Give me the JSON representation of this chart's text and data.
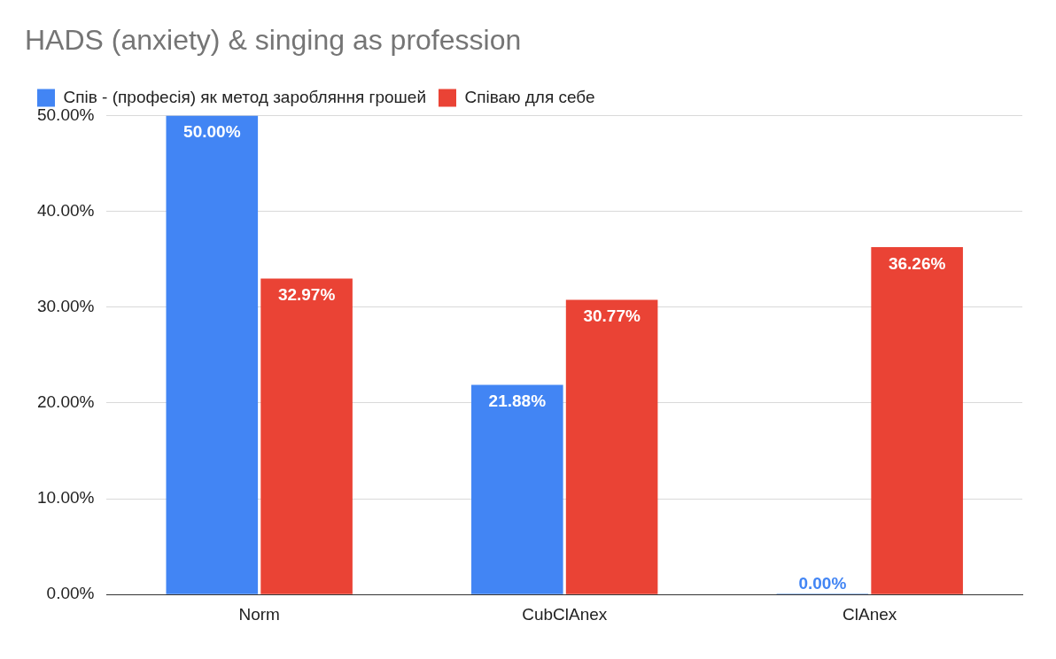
{
  "chart_data": {
    "type": "bar",
    "title": "HADS (anxiety) & singing as profession",
    "categories": [
      "Norm",
      "CubClAnex",
      "ClAnex"
    ],
    "series": [
      {
        "name": "Спів - (професія) як метод заробляння грошей",
        "color": "#4285f4",
        "values": [
          50,
          21.88,
          0
        ],
        "value_labels": [
          "50.00%",
          "21.88%",
          "0.00%"
        ]
      },
      {
        "name": "Співаю для себе",
        "color": "#ea4335",
        "values": [
          32.97,
          30.77,
          36.26
        ],
        "value_labels": [
          "32.97%",
          "30.77%",
          "36.26%"
        ]
      }
    ],
    "ylim": [
      0,
      50
    ],
    "yticks": [
      {
        "value": 0,
        "label": "0.00%"
      },
      {
        "value": 10,
        "label": "10.00%"
      },
      {
        "value": 20,
        "label": "20.00%"
      },
      {
        "value": 30,
        "label": "30.00%"
      },
      {
        "value": 40,
        "label": "40.00%"
      },
      {
        "value": 50,
        "label": "50.00%"
      }
    ],
    "grid": "y",
    "legend": "top left"
  }
}
